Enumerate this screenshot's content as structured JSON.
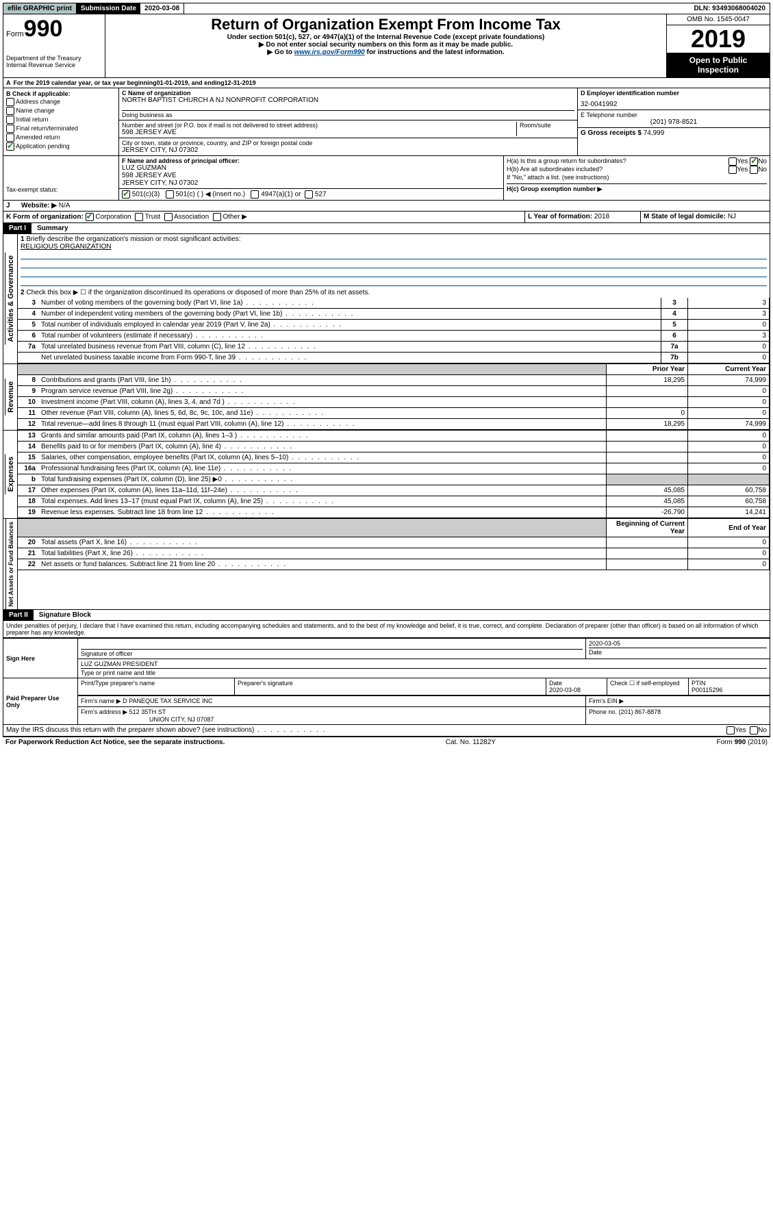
{
  "topbar": {
    "efile": "efile GRAPHIC print",
    "subdate_label": "Submission Date",
    "subdate_val": "2020-03-08",
    "dln_label": "DLN:",
    "dln_val": "93493068004020"
  },
  "header": {
    "form_label": "Form",
    "form_num": "990",
    "dept": "Department of the Treasury",
    "irs": "Internal Revenue Service",
    "title": "Return of Organization Exempt From Income Tax",
    "sub1": "Under section 501(c), 527, or 4947(a)(1) of the Internal Revenue Code (except private foundations)",
    "sub2": "▶ Do not enter social security numbers on this form as it may be made public.",
    "sub3_pre": "▶ Go to ",
    "sub3_link": "www.irs.gov/Form990",
    "sub3_post": " for instructions and the latest information.",
    "omb": "OMB No. 1545-0047",
    "year": "2019",
    "open": "Open to Public Inspection"
  },
  "periodA": {
    "text_pre": "For the 2019 calendar year, or tax year beginning ",
    "begin": "01-01-2019",
    "mid": " , and ending ",
    "end": "12-31-2019"
  },
  "sectionB": {
    "label": "B Check if applicable:",
    "items": [
      "Address change",
      "Name change",
      "Initial return",
      "Final return/terminated",
      "Amended return",
      "Application pending"
    ],
    "app_pending_checked": true
  },
  "sectionC": {
    "name_label": "C Name of organization",
    "name": "NORTH BAPTIST CHURCH A NJ NONPROFIT CORPORATION",
    "dba_label": "Doing business as",
    "addr_label": "Number and street (or P.O. box if mail is not delivered to street address)",
    "room_label": "Room/suite",
    "addr": "598 JERSEY AVE",
    "city_label": "City or town, state or province, country, and ZIP or foreign postal code",
    "city": "JERSEY CITY, NJ  07302"
  },
  "sectionD": {
    "label": "D Employer identification number",
    "val": "32-0041992"
  },
  "sectionE": {
    "label": "E Telephone number",
    "val": "(201) 978-8521"
  },
  "sectionG": {
    "label": "G Gross receipts $",
    "val": "74,999"
  },
  "sectionF": {
    "label": "F Name and address of principal officer:",
    "name": "LUZ GUZMAN",
    "addr1": "598 JERSEY AVE",
    "addr2": "JERSEY CITY, NJ  07302"
  },
  "sectionH": {
    "ha": "H(a)  Is this a group return for subordinates?",
    "hb": "H(b)  Are all subordinates included?",
    "hb_note": "If \"No,\" attach a list. (see instructions)",
    "hc": "H(c)  Group exemption number ▶",
    "yes": "Yes",
    "no": "No"
  },
  "taxExempt": {
    "label": "Tax-exempt status:",
    "c501c3": "501(c)(3)",
    "c501c": "501(c) (   ) ◀ (insert no.)",
    "c4947": "4947(a)(1) or",
    "c527": "527"
  },
  "sectionI": {
    "label": "I",
    "text": "Website: ▶",
    "val": "N/A"
  },
  "sectionJ": {
    "label": "J"
  },
  "sectionK": {
    "label": "K Form of organization:",
    "corp": "Corporation",
    "trust": "Trust",
    "assoc": "Association",
    "other": "Other ▶"
  },
  "sectionL": {
    "label": "L Year of formation:",
    "val": "2018"
  },
  "sectionM": {
    "label": "M State of legal domicile:",
    "val": "NJ"
  },
  "part1": {
    "header": "Part I",
    "title": "Summary",
    "q1": "Briefly describe the organization's mission or most significant activities:",
    "q1val": "RELIGIOUS ORGANIZATION",
    "q2": "Check this box ▶ ☐ if the organization discontinued its operations or disposed of more than 25% of its net assets.",
    "lines_gov": [
      {
        "n": "3",
        "d": "Number of voting members of the governing body (Part VI, line 1a)",
        "box": "3",
        "v": "3"
      },
      {
        "n": "4",
        "d": "Number of independent voting members of the governing body (Part VI, line 1b)",
        "box": "4",
        "v": "3"
      },
      {
        "n": "5",
        "d": "Total number of individuals employed in calendar year 2019 (Part V, line 2a)",
        "box": "5",
        "v": "0"
      },
      {
        "n": "6",
        "d": "Total number of volunteers (estimate if necessary)",
        "box": "6",
        "v": "3"
      },
      {
        "n": "7a",
        "d": "Total unrelated business revenue from Part VIII, column (C), line 12",
        "box": "7a",
        "v": "0"
      },
      {
        "n": "",
        "d": "Net unrelated business taxable income from Form 990-T, line 39",
        "box": "7b",
        "v": "0"
      }
    ],
    "col_prior": "Prior Year",
    "col_current": "Current Year",
    "lines_rev": [
      {
        "n": "8",
        "d": "Contributions and grants (Part VIII, line 1h)",
        "p": "18,295",
        "c": "74,999"
      },
      {
        "n": "9",
        "d": "Program service revenue (Part VIII, line 2g)",
        "p": "",
        "c": "0"
      },
      {
        "n": "10",
        "d": "Investment income (Part VIII, column (A), lines 3, 4, and 7d )",
        "p": "",
        "c": "0"
      },
      {
        "n": "11",
        "d": "Other revenue (Part VIII, column (A), lines 5, 6d, 8c, 9c, 10c, and 11e)",
        "p": "0",
        "c": "0"
      },
      {
        "n": "12",
        "d": "Total revenue—add lines 8 through 11 (must equal Part VIII, column (A), line 12)",
        "p": "18,295",
        "c": "74,999"
      }
    ],
    "lines_exp": [
      {
        "n": "13",
        "d": "Grants and similar amounts paid (Part IX, column (A), lines 1–3 )",
        "p": "",
        "c": "0"
      },
      {
        "n": "14",
        "d": "Benefits paid to or for members (Part IX, column (A), line 4)",
        "p": "",
        "c": "0"
      },
      {
        "n": "15",
        "d": "Salaries, other compensation, employee benefits (Part IX, column (A), lines 5–10)",
        "p": "",
        "c": "0"
      },
      {
        "n": "16a",
        "d": "Professional fundraising fees (Part IX, column (A), line 11e)",
        "p": "",
        "c": "0"
      },
      {
        "n": "b",
        "d": "Total fundraising expenses (Part IX, column (D), line 25) ▶0",
        "p": "SHADE",
        "c": "SHADE"
      },
      {
        "n": "17",
        "d": "Other expenses (Part IX, column (A), lines 11a–11d, 11f–24e)",
        "p": "45,085",
        "c": "60,758"
      },
      {
        "n": "18",
        "d": "Total expenses. Add lines 13–17 (must equal Part IX, column (A), line 25)",
        "p": "45,085",
        "c": "60,758"
      },
      {
        "n": "19",
        "d": "Revenue less expenses. Subtract line 18 from line 12",
        "p": "-26,790",
        "c": "14,241"
      }
    ],
    "col_begin": "Beginning of Current Year",
    "col_end": "End of Year",
    "lines_net": [
      {
        "n": "20",
        "d": "Total assets (Part X, line 16)",
        "p": "",
        "c": "0"
      },
      {
        "n": "21",
        "d": "Total liabilities (Part X, line 26)",
        "p": "",
        "c": "0"
      },
      {
        "n": "22",
        "d": "Net assets or fund balances. Subtract line 21 from line 20",
        "p": "",
        "c": "0"
      }
    ],
    "vlabels": {
      "gov": "Activities & Governance",
      "rev": "Revenue",
      "exp": "Expenses",
      "net": "Net Assets or Fund Balances"
    }
  },
  "part2": {
    "header": "Part II",
    "title": "Signature Block",
    "perjury": "Under penalties of perjury, I declare that I have examined this return, including accompanying schedules and statements, and to the best of my knowledge and belief, it is true, correct, and complete. Declaration of preparer (other than officer) is based on all information of which preparer has any knowledge.",
    "sign_here": "Sign Here",
    "sig_officer": "Signature of officer",
    "sig_date": "2020-03-05",
    "date_label": "Date",
    "officer_name": "LUZ GUZMAN  PRESIDENT",
    "type_name": "Type or print name and title",
    "paid": "Paid Preparer Use Only",
    "print_name_label": "Print/Type preparer's name",
    "prep_sig_label": "Preparer's signature",
    "prep_date_label": "Date",
    "prep_date": "2020-03-08",
    "check_label": "Check ☐ if self-employed",
    "ptin_label": "PTIN",
    "ptin": "P00115296",
    "firm_name_label": "Firm's name    ▶",
    "firm_name": "D PANEQUE TAX SERVICE INC",
    "firm_ein_label": "Firm's EIN ▶",
    "firm_addr_label": "Firm's address ▶",
    "firm_addr1": "512 35TH ST",
    "firm_addr2": "UNION CITY, NJ  07087",
    "phone_label": "Phone no.",
    "phone": "(201) 867-8878",
    "discuss": "May the IRS discuss this return with the preparer shown above? (see instructions)",
    "yes": "Yes",
    "no": "No"
  },
  "footer": {
    "left": "For Paperwork Reduction Act Notice, see the separate instructions.",
    "mid": "Cat. No. 11282Y",
    "right_pre": "Form ",
    "right_form": "990",
    "right_post": " (2019)"
  }
}
